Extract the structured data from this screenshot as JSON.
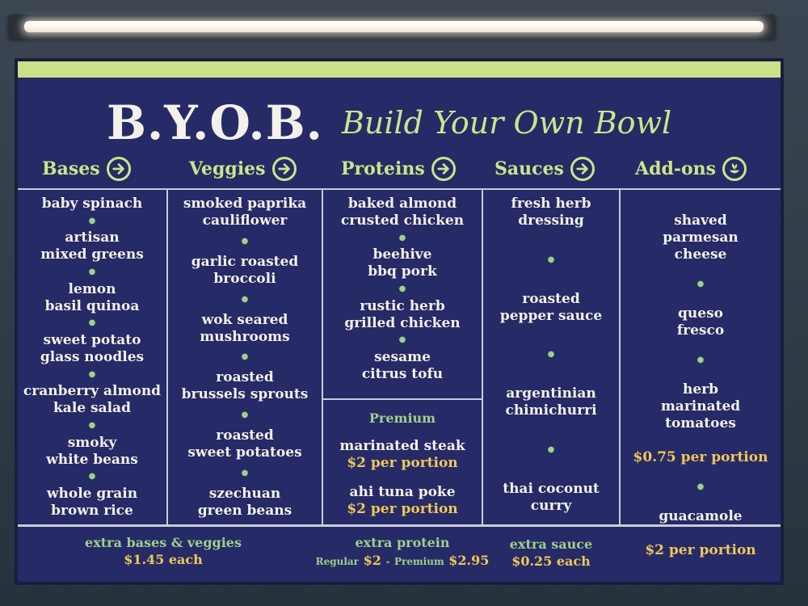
{
  "title": {
    "main": "B.Y.O.B.",
    "script": "Build Your Own Bowl"
  },
  "categories": [
    {
      "label": "Bases",
      "icon": "arrow-right-icon"
    },
    {
      "label": "Veggies",
      "icon": "arrow-right-icon"
    },
    {
      "label": "Proteins",
      "icon": "arrow-right-icon"
    },
    {
      "label": "Sauces",
      "icon": "arrow-right-icon"
    },
    {
      "label": "Add-ons",
      "icon": "leaf-bowl-icon"
    }
  ],
  "bases": [
    "baby spinach",
    "artisan\nmixed greens",
    "lemon\nbasil quinoa",
    "sweet potato\nglass noodles",
    "cranberry almond\nkale salad",
    "smoky\nwhite beans",
    "whole grain\nbrown rice"
  ],
  "veggies": [
    "smoked paprika\ncauliflower",
    "garlic roasted\nbroccoli",
    "wok seared\nmushrooms",
    "roasted\nbrussels sprouts",
    "roasted\nsweet potatoes",
    "szechuan\ngreen beans"
  ],
  "proteins": [
    "baked almond\ncrusted chicken",
    "beehive\nbbq pork",
    "rustic herb\ngrilled chicken",
    "sesame\ncitrus tofu"
  ],
  "premium": {
    "label": "Premium",
    "items": [
      {
        "name": "marinated steak",
        "price": "$2 per portion"
      },
      {
        "name": "ahi tuna poke",
        "price": "$2 per portion"
      }
    ]
  },
  "sauces": [
    "fresh herb\ndressing",
    "roasted\npepper sauce",
    "argentinian\nchimichurri",
    "thai coconut\ncurry"
  ],
  "addons": [
    {
      "name": "shaved\nparmesan\ncheese",
      "price": ""
    },
    {
      "name": "queso\nfresco",
      "price": ""
    },
    {
      "name": "herb\nmarinated\ntomatoes",
      "price": "$0.75 per portion"
    },
    {
      "name": "guacamole",
      "price": "$2 per portion"
    }
  ],
  "footer": {
    "extra_bases_label": "extra bases & veggies",
    "extra_bases_price": "$1.45 each",
    "extra_protein_label": "extra protein",
    "extra_protein_regular": "Regular",
    "extra_protein_regular_price": "$2",
    "extra_protein_dash": "-",
    "extra_protein_premium": "Premium",
    "extra_protein_premium_price": "$2.95",
    "extra_sauce_label": "extra sauce",
    "extra_sauce_price": "$0.25 each"
  },
  "colors": {
    "board": "#262a66",
    "accent_green": "#cde48a",
    "text": "#f3f1ea",
    "price": "#f0c75a"
  }
}
